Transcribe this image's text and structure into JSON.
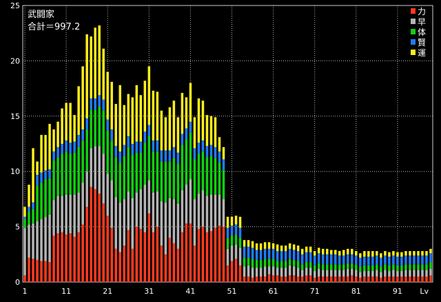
{
  "chart_data": {
    "type": "bar",
    "stacked": true,
    "title": "武闘家",
    "subtitle": "合計＝997.2",
    "xlabel": "Lv",
    "ylabel": "",
    "ylim": [
      0,
      25
    ],
    "y_ticks": [
      "0",
      "5",
      "10",
      "15",
      "20",
      "25"
    ],
    "x_ticks": [
      "1",
      "11",
      "21",
      "31",
      "41",
      "51",
      "61",
      "71",
      "81",
      "91"
    ],
    "x_tick_values": [
      1,
      11,
      21,
      31,
      41,
      51,
      61,
      71,
      81,
      91
    ],
    "x_label_text": "Lv",
    "grid": true,
    "legend_position": "top-right",
    "categories": [
      1,
      2,
      3,
      4,
      5,
      6,
      7,
      8,
      9,
      10,
      11,
      12,
      13,
      14,
      15,
      16,
      17,
      18,
      19,
      20,
      21,
      22,
      23,
      24,
      25,
      26,
      27,
      28,
      29,
      30,
      31,
      32,
      33,
      34,
      35,
      36,
      37,
      38,
      39,
      40,
      41,
      42,
      43,
      44,
      45,
      46,
      47,
      48,
      49,
      50,
      51,
      52,
      53,
      54,
      55,
      56,
      57,
      58,
      58,
      60,
      61,
      62,
      63,
      64,
      65,
      66,
      67,
      68,
      69,
      70,
      71,
      72,
      73,
      74,
      75,
      76,
      77,
      78,
      79,
      80,
      81,
      82,
      83,
      84,
      85,
      86,
      87,
      88,
      89,
      90,
      91,
      92,
      93,
      94,
      95,
      96,
      97,
      98,
      99
    ],
    "series": [
      {
        "name": "力",
        "color": "#ff3b1f",
        "values": [
          0.6,
          2.2,
          2.1,
          2.0,
          1.9,
          1.9,
          1.8,
          4.2,
          4.4,
          4.5,
          4.3,
          4.4,
          4.1,
          4.5,
          5.2,
          6.8,
          8.6,
          8.4,
          8.0,
          7.1,
          6.0,
          4.9,
          3.0,
          2.7,
          3.3,
          4.7,
          3.0,
          5.0,
          4.8,
          4.5,
          6.2,
          4.5,
          5.0,
          3.3,
          2.5,
          4.0,
          3.5,
          3.0,
          4.5,
          5.3,
          5.3,
          3.3,
          4.8,
          5.0,
          4.5,
          4.6,
          4.9,
          5.1,
          5.0,
          1.5,
          1.9,
          2.1,
          1.5,
          0.5,
          0.5,
          0.4,
          0.5,
          0.5,
          0.5,
          0.7,
          0.6,
          0.6,
          0.5,
          0.5,
          0.6,
          0.6,
          0.5,
          0.5,
          0.6,
          0.6,
          0.4,
          0.5,
          0.5,
          0.5,
          0.5,
          0.5,
          0.5,
          0.5,
          0.5,
          0.6,
          0.5,
          0.4,
          0.5,
          0.5,
          0.5,
          0.5,
          0.4,
          0.5,
          0.5,
          0.5,
          0.5,
          0.5,
          0.5,
          0.5,
          0.5,
          0.5,
          0.5,
          0.5,
          0.6
        ]
      },
      {
        "name": "早",
        "color": "#b4b4b4",
        "values": [
          4.3,
          3.0,
          3.2,
          3.5,
          3.8,
          4.0,
          4.3,
          3.2,
          3.4,
          3.3,
          3.6,
          3.5,
          3.8,
          3.6,
          3.8,
          3.2,
          3.5,
          3.9,
          4.3,
          4.5,
          3.8,
          4.3,
          4.7,
          4.5,
          4.2,
          3.5,
          4.6,
          3.1,
          3.6,
          4.3,
          3.0,
          3.6,
          3.2,
          4.0,
          4.7,
          3.6,
          4.0,
          4.1,
          3.8,
          3.5,
          4.0,
          4.2,
          3.2,
          3.3,
          3.3,
          3.3,
          3.0,
          2.8,
          2.5,
          1.5,
          1.4,
          1.3,
          1.6,
          0.9,
          1.0,
          0.9,
          0.8,
          0.8,
          0.9,
          0.7,
          0.8,
          0.7,
          0.8,
          0.8,
          0.9,
          0.8,
          0.8,
          0.6,
          0.7,
          0.7,
          0.6,
          0.7,
          0.6,
          0.6,
          0.6,
          0.6,
          0.6,
          0.6,
          0.7,
          0.6,
          0.6,
          0.5,
          0.5,
          0.5,
          0.5,
          0.6,
          0.5,
          0.6,
          0.5,
          0.6,
          0.5,
          0.5,
          0.6,
          0.6,
          0.6,
          0.6,
          0.6,
          0.6,
          0.6
        ]
      },
      {
        "name": "体",
        "color": "#11d011",
        "values": [
          0.8,
          1.2,
          1.3,
          3.2,
          3.3,
          3.4,
          3.3,
          3.6,
          3.5,
          3.8,
          3.9,
          3.7,
          3.8,
          4.1,
          3.8,
          3.8,
          3.5,
          3.3,
          3.6,
          3.9,
          3.9,
          3.6,
          3.6,
          3.6,
          3.9,
          4.0,
          3.9,
          3.6,
          3.3,
          3.8,
          4.0,
          3.7,
          3.6,
          3.6,
          3.7,
          3.3,
          3.7,
          3.6,
          4.1,
          4.1,
          4.2,
          3.6,
          3.6,
          3.5,
          3.5,
          3.5,
          3.3,
          2.9,
          2.6,
          1.0,
          0.9,
          0.9,
          0.9,
          0.8,
          0.7,
          0.8,
          0.7,
          0.7,
          0.7,
          0.7,
          0.7,
          0.6,
          0.6,
          0.6,
          0.6,
          0.6,
          0.6,
          0.5,
          0.5,
          0.5,
          0.5,
          0.5,
          0.5,
          0.5,
          0.5,
          0.5,
          0.5,
          0.5,
          0.5,
          0.5,
          0.5,
          0.5,
          0.5,
          0.5,
          0.5,
          0.5,
          0.5,
          0.5,
          0.5,
          0.5,
          0.5,
          0.5,
          0.5,
          0.5,
          0.5,
          0.5,
          0.5,
          0.5,
          0.6
        ]
      },
      {
        "name": "賢",
        "color": "#1f7cff",
        "values": [
          0.2,
          0.4,
          0.6,
          1.0,
          0.9,
          0.8,
          0.8,
          0.8,
          0.9,
          0.9,
          1.0,
          1.0,
          1.0,
          1.1,
          1.0,
          1.0,
          1.0,
          1.0,
          1.0,
          1.0,
          1.0,
          1.0,
          1.0,
          1.0,
          1.0,
          1.0,
          1.0,
          1.0,
          1.0,
          1.0,
          1.0,
          1.0,
          1.0,
          1.0,
          1.0,
          1.0,
          1.0,
          1.0,
          1.0,
          1.0,
          1.0,
          1.0,
          1.0,
          1.0,
          1.0,
          1.0,
          1.0,
          1.0,
          1.0,
          0.9,
          0.9,
          0.9,
          0.9,
          1.0,
          1.0,
          1.0,
          0.9,
          0.9,
          0.9,
          0.9,
          0.9,
          0.9,
          0.9,
          0.9,
          0.9,
          0.9,
          0.9,
          0.9,
          0.9,
          0.9,
          0.9,
          0.9,
          0.9,
          0.9,
          0.9,
          0.9,
          0.8,
          0.8,
          0.8,
          0.8,
          0.8,
          0.8,
          0.8,
          0.8,
          0.8,
          0.8,
          0.8,
          0.8,
          0.8,
          0.8,
          0.8,
          0.8,
          0.8,
          0.8,
          0.8,
          0.8,
          0.8,
          0.8,
          0.8
        ]
      },
      {
        "name": "運",
        "color": "#ffee1a",
        "values": [
          0.9,
          2.0,
          4.9,
          1.2,
          3.4,
          3.2,
          4.1,
          2.0,
          2.3,
          3.2,
          3.4,
          3.6,
          2.4,
          4.4,
          5.7,
          7.6,
          5.6,
          6.4,
          6.3,
          4.6,
          4.3,
          4.3,
          3.8,
          6.0,
          3.6,
          3.8,
          4.2,
          5.1,
          4.2,
          4.6,
          5.3,
          4.5,
          4.4,
          3.6,
          3.0,
          3.9,
          4.2,
          3.2,
          3.7,
          2.8,
          3.5,
          2.8,
          4.0,
          3.6,
          2.8,
          2.6,
          2.7,
          1.3,
          1.1,
          1.0,
          0.8,
          0.8,
          1.0,
          0.6,
          0.6,
          0.6,
          0.6,
          0.6,
          0.6,
          0.6,
          0.5,
          0.6,
          0.5,
          0.5,
          0.5,
          0.5,
          0.5,
          0.5,
          0.5,
          0.5,
          0.4,
          0.5,
          0.5,
          0.5,
          0.4,
          0.4,
          0.4,
          0.5,
          0.5,
          0.5,
          0.4,
          0.4,
          0.5,
          0.5,
          0.5,
          0.4,
          0.4,
          0.4,
          0.4,
          0.4,
          0.4,
          0.4,
          0.4,
          0.4,
          0.4,
          0.4,
          0.4,
          0.4,
          0.4
        ]
      }
    ]
  }
}
